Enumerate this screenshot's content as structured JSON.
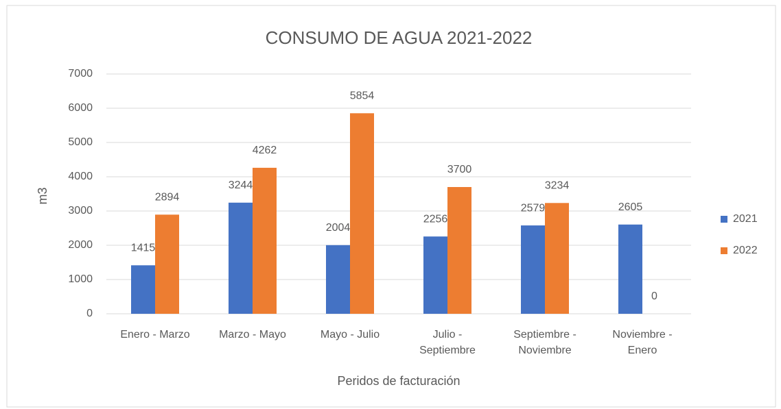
{
  "chart_data": {
    "type": "bar",
    "title": "CONSUMO DE AGUA 2021-2022",
    "x_label": "Peridos de facturación",
    "y_label": "m3",
    "categories": [
      "Enero - Marzo",
      "Marzo -  Mayo",
      "Mayo  - Julio",
      "Julio - Septiembre",
      "Septiembre - Noviembre",
      "Noviembre  - Enero"
    ],
    "series": [
      {
        "name": "2021",
        "color": "#4472c4",
        "values": [
          1415,
          3244,
          2004,
          2256,
          2579,
          2605
        ]
      },
      {
        "name": "2022",
        "color": "#ed7d31",
        "values": [
          2894,
          4262,
          5854,
          3700,
          3234,
          0
        ]
      }
    ],
    "ylim": [
      0,
      7000
    ],
    "yticks": [
      0,
      1000,
      2000,
      3000,
      4000,
      5000,
      6000,
      7000
    ],
    "grid": true,
    "legend": "right"
  }
}
